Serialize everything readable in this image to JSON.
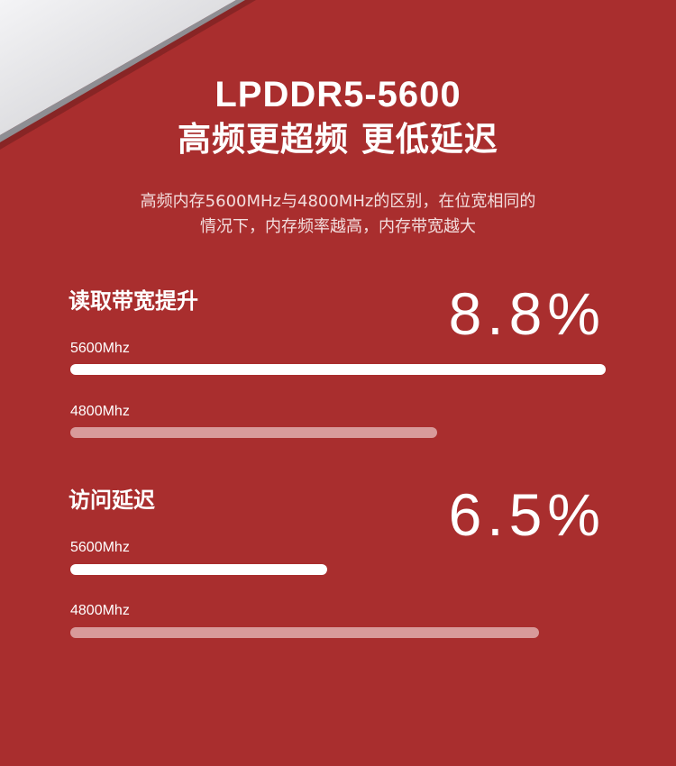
{
  "colors": {
    "background": "#a92e2e",
    "bar_strong": "#ffffff",
    "bar_weak": "#d89a9a"
  },
  "header": {
    "title_line1": "LPDDR5-5600",
    "title_line2": "高频更超频 更低延迟"
  },
  "subtitle": {
    "line1": "高频内存5600MHz与4800MHz的区别，在位宽相同的",
    "line2": "情况下，内存频率越高，内存带宽越大"
  },
  "bandwidth": {
    "heading": "读取带宽提升",
    "percent": "8.8%",
    "bars": [
      {
        "label": "5600Mhz",
        "fraction": 1.0
      },
      {
        "label": "4800Mhz",
        "fraction": 0.685
      }
    ]
  },
  "latency": {
    "heading": "访问延迟",
    "percent": "6.5%",
    "bars": [
      {
        "label": "5600Mhz",
        "fraction": 0.48
      },
      {
        "label": "4800Mhz",
        "fraction": 0.875
      }
    ]
  }
}
